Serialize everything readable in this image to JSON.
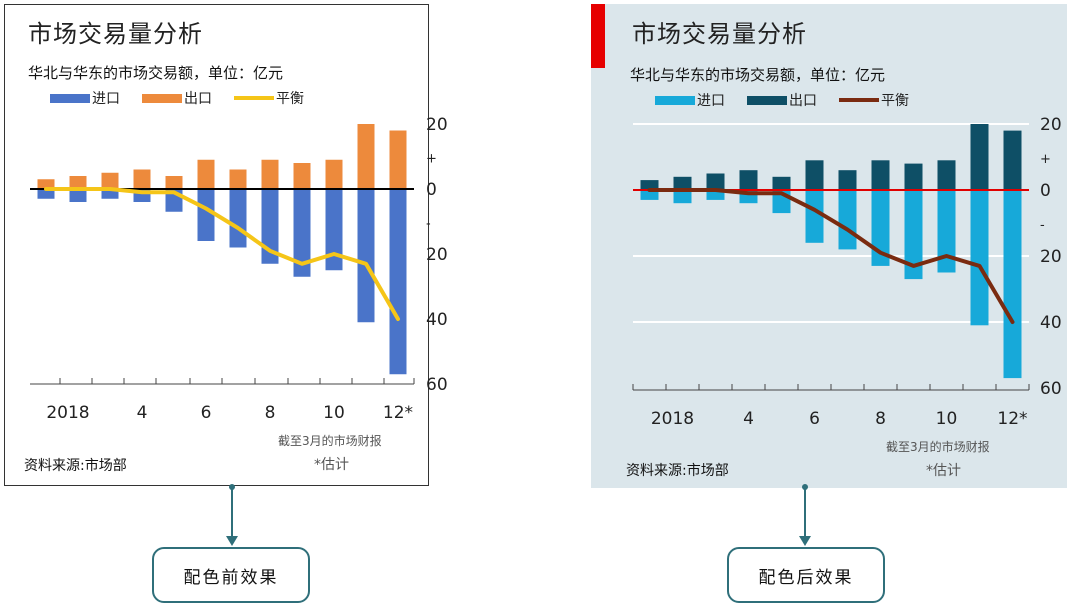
{
  "figures": [
    {
      "id": "before",
      "title": "市场交易量分析",
      "subtitle": "华北与华东的市场交易额，单位：亿元",
      "legend": [
        {
          "label": "进口",
          "type": "bar"
        },
        {
          "label": "出口",
          "type": "bar"
        },
        {
          "label": "平衡",
          "type": "line"
        }
      ],
      "source": "资料来源:市场部",
      "note": "截至3月的市场财报",
      "estimate": "*估计",
      "colors": {
        "import": "#4a74c9",
        "export": "#ed8a3c",
        "balance": "#f5c518",
        "zero": "#000000",
        "background": "#ffffff"
      },
      "caption": "配色前效果"
    },
    {
      "id": "after",
      "title": "市场交易量分析",
      "subtitle": "华北与华东的市场交易额，单位：亿元",
      "legend": [
        {
          "label": "进口",
          "type": "bar"
        },
        {
          "label": "出口",
          "type": "bar"
        },
        {
          "label": "平衡",
          "type": "line"
        }
      ],
      "source": "资料来源:市场部",
      "note": "截至3月的市场财报",
      "estimate": "*估计",
      "colors": {
        "import": "#17a9d9",
        "export": "#0e4f66",
        "balance": "#7a2b10",
        "zero": "#e00000",
        "background": "#dbe6eb",
        "accent": "#e60000"
      },
      "caption": "配色后效果"
    }
  ],
  "chart_data": [
    {
      "type": "bar",
      "title": "市场交易量分析",
      "subtitle": "华北与华东的市场交易额，单位：亿元",
      "x_tick_labels": [
        "2018",
        "4",
        "6",
        "8",
        "10",
        "12*"
      ],
      "y_tick_labels": [
        "20",
        "+",
        "0",
        "-",
        "20",
        "40",
        "60"
      ],
      "categories": [
        "2018-01",
        "2018-02",
        "2018-03",
        "2018-04",
        "2018-05",
        "2018-06",
        "2018-07",
        "2018-08",
        "2018-09",
        "2018-10",
        "2018-11",
        "2018-12"
      ],
      "series": [
        {
          "name": "进口",
          "values": [
            -3,
            -4,
            -3,
            -4,
            -7,
            -16,
            -18,
            -23,
            -27,
            -25,
            -41,
            -57
          ]
        },
        {
          "name": "出口",
          "values": [
            3,
            4,
            5,
            6,
            4,
            9,
            6,
            9,
            8,
            9,
            20,
            18
          ]
        },
        {
          "name": "平衡",
          "values": [
            0,
            0,
            0,
            -1,
            -1,
            -6,
            -12,
            -19,
            -23,
            -20,
            -23,
            -40
          ]
        }
      ],
      "ylim": [
        -60,
        20
      ],
      "grid": false,
      "legend_position": "top-left"
    },
    {
      "type": "bar",
      "title": "市场交易量分析",
      "subtitle": "华北与华东的市场交易额，单位：亿元",
      "x_tick_labels": [
        "2018",
        "4",
        "6",
        "8",
        "10",
        "12*"
      ],
      "y_tick_labels": [
        "20",
        "+",
        "0",
        "-",
        "20",
        "40",
        "60"
      ],
      "categories": [
        "2018-01",
        "2018-02",
        "2018-03",
        "2018-04",
        "2018-05",
        "2018-06",
        "2018-07",
        "2018-08",
        "2018-09",
        "2018-10",
        "2018-11",
        "2018-12"
      ],
      "series": [
        {
          "name": "进口",
          "values": [
            -3,
            -4,
            -3,
            -4,
            -7,
            -16,
            -18,
            -23,
            -27,
            -25,
            -41,
            -57
          ]
        },
        {
          "name": "出口",
          "values": [
            3,
            4,
            5,
            6,
            4,
            9,
            6,
            9,
            8,
            9,
            20,
            18
          ]
        },
        {
          "name": "平衡",
          "values": [
            0,
            0,
            0,
            -1,
            -1,
            -6,
            -12,
            -19,
            -23,
            -20,
            -23,
            -40
          ]
        }
      ],
      "ylim": [
        -60,
        20
      ],
      "grid": true,
      "legend_position": "top-left"
    }
  ]
}
